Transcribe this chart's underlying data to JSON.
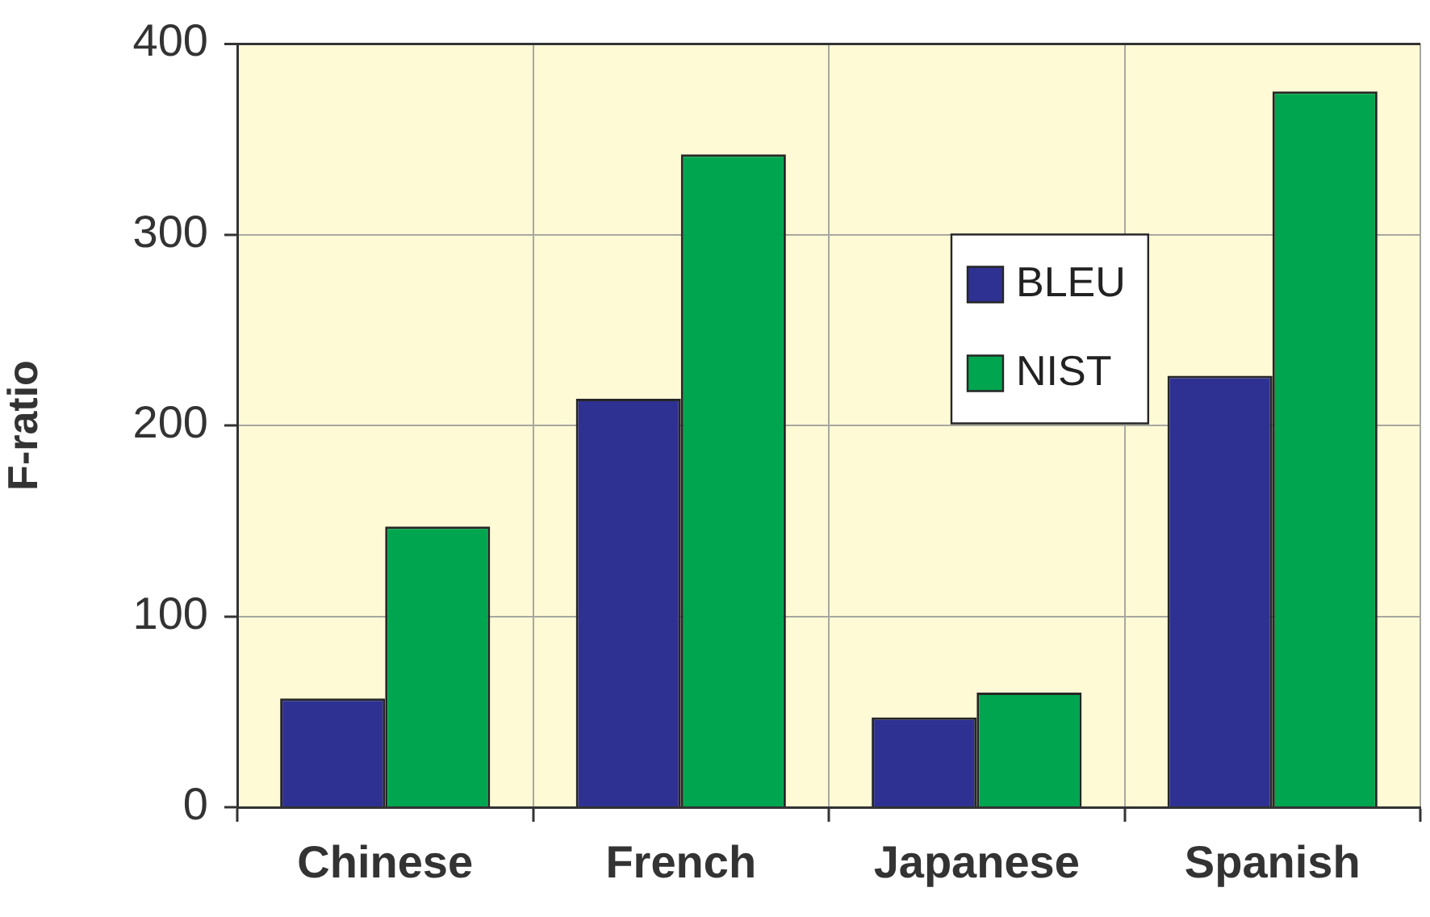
{
  "chart_data": {
    "type": "bar",
    "ylabel": "F-ratio",
    "categories": [
      "Chinese",
      "French",
      "Japanese",
      "Spanish"
    ],
    "series": [
      {
        "name": "BLEU",
        "color": "#2e3192",
        "values": [
          57,
          214,
          47,
          226
        ]
      },
      {
        "name": "NIST",
        "color": "#00a54f",
        "values": [
          147,
          342,
          60,
          375
        ]
      }
    ],
    "ylim": [
      0,
      400
    ],
    "yticks": [
      0,
      100,
      200,
      300,
      400
    ],
    "grid": true,
    "legend": "top right"
  }
}
